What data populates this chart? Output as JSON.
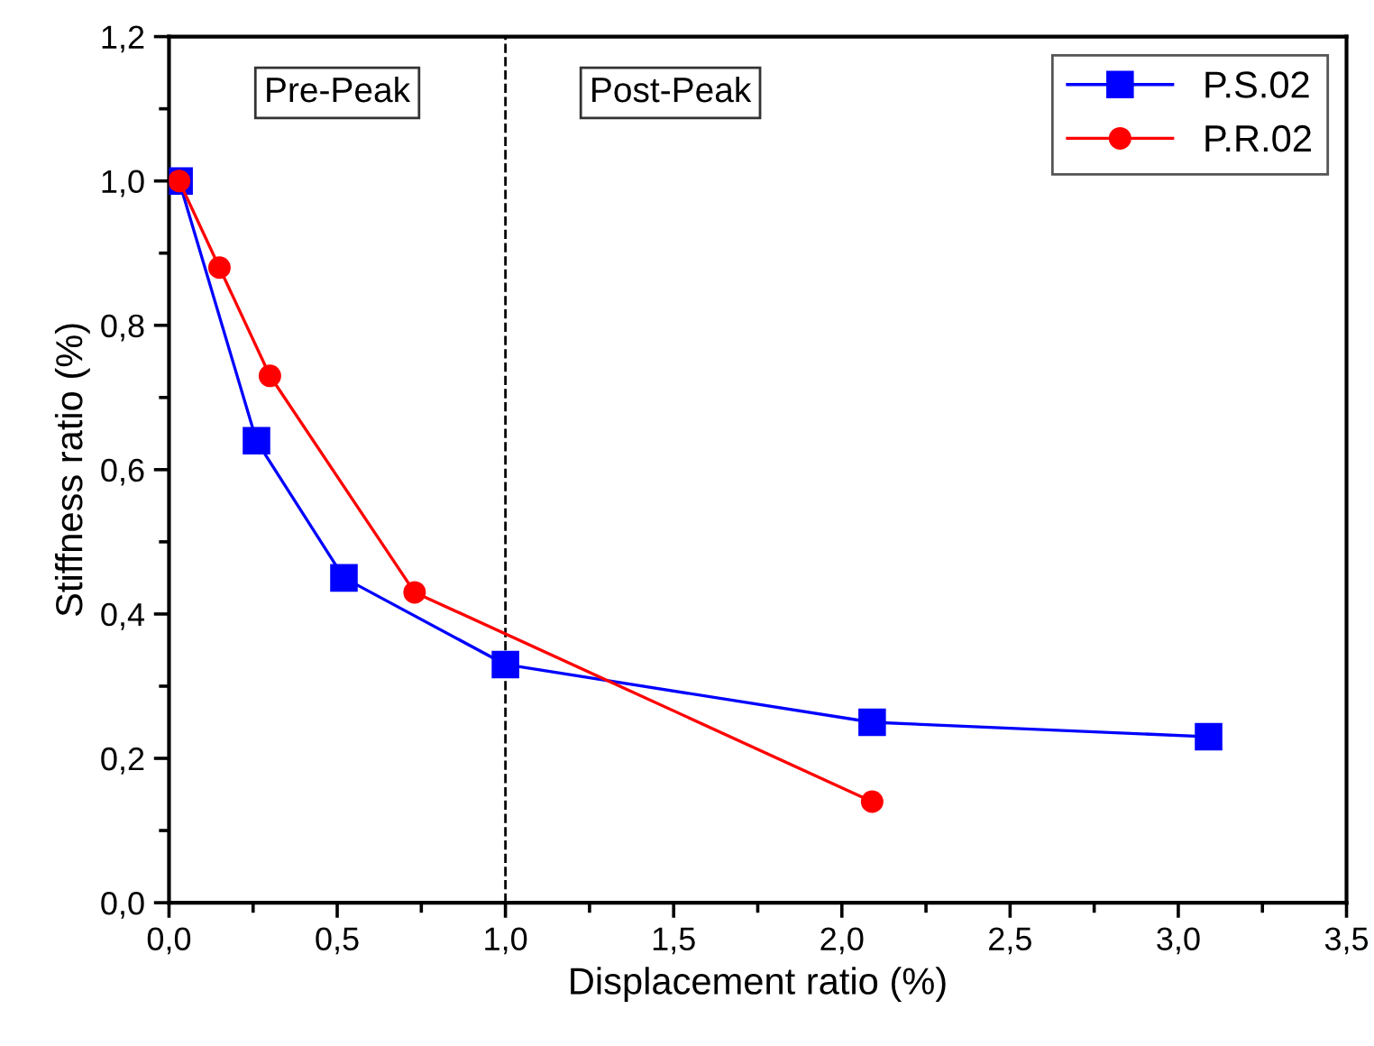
{
  "chart_data": {
    "type": "line",
    "xlabel": "Displacement ratio (%)",
    "ylabel": "Stiffness ratio (%)",
    "series": [
      {
        "name": "P.S.02",
        "color": "#0000ff",
        "marker": "square",
        "x": [
          0.03,
          0.26,
          0.52,
          1.0,
          2.09,
          3.09
        ],
        "values": [
          1.0,
          0.64,
          0.45,
          0.33,
          0.25,
          0.23
        ]
      },
      {
        "name": "P.R.02",
        "color": "#ff0000",
        "marker": "circle",
        "x": [
          0.03,
          0.15,
          0.3,
          0.73,
          2.09
        ],
        "values": [
          1.0,
          0.88,
          0.73,
          0.43,
          0.14
        ]
      }
    ],
    "xlim": [
      0,
      3.5
    ],
    "ylim": [
      0,
      1.2
    ],
    "xticks": [
      {
        "value": 0,
        "label": "0,0"
      },
      {
        "value": 0.5,
        "label": "0,5"
      },
      {
        "value": 1.0,
        "label": "1,0"
      },
      {
        "value": 1.5,
        "label": "1,5"
      },
      {
        "value": 2.0,
        "label": "2,0"
      },
      {
        "value": 2.5,
        "label": "2,5"
      },
      {
        "value": 3.0,
        "label": "3,0"
      },
      {
        "value": 3.5,
        "label": "3,5"
      }
    ],
    "yticks": [
      {
        "value": 0,
        "label": "0,0"
      },
      {
        "value": 0.2,
        "label": "0,2"
      },
      {
        "value": 0.4,
        "label": "0,4"
      },
      {
        "value": 0.6,
        "label": "0,6"
      },
      {
        "value": 0.8,
        "label": "0,8"
      },
      {
        "value": 1.0,
        "label": "1,0"
      },
      {
        "value": 1.2,
        "label": "1,2"
      }
    ],
    "ref_lines": [
      {
        "axis": "x",
        "value": 1.0,
        "color": "#000000",
        "line_style": "dashed"
      }
    ],
    "annotations": [
      "Pre-Peak",
      "Post-Peak"
    ],
    "legend": "top right",
    "grid": false
  }
}
